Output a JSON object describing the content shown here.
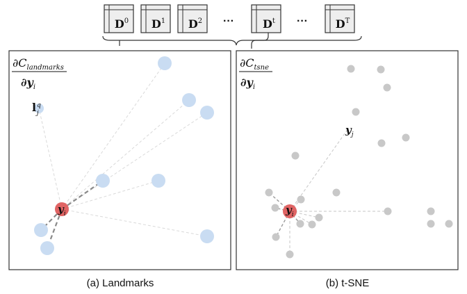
{
  "sequence": {
    "frames": [
      {
        "base": "D",
        "sup": "0"
      },
      {
        "base": "D",
        "sup": "1"
      },
      {
        "base": "D",
        "sup": "2"
      },
      {
        "ellipsis": "···"
      },
      {
        "base": "D",
        "sup": "t"
      },
      {
        "ellipsis": "···"
      },
      {
        "base": "D",
        "sup": "T"
      }
    ]
  },
  "panel_a": {
    "caption": "(a) Landmarks",
    "gradient": {
      "num_base": "∂C",
      "num_sub": "landmarks",
      "den_base": "∂y",
      "den_sub": "i"
    },
    "focus": {
      "base": "y",
      "sub": "i"
    },
    "landmark": {
      "base": "l",
      "sub": "j",
      "sup": "q"
    }
  },
  "panel_b": {
    "caption": "(b) t-SNE",
    "gradient": {
      "num_base": "∂C",
      "num_sub": "tsne",
      "den_base": "∂y",
      "den_sub": "i"
    },
    "focus": {
      "base": "y",
      "sub": "i"
    },
    "neighbor": {
      "base": "y",
      "sub": "j"
    }
  },
  "colors": {
    "landmark_point": "#c9dcf2",
    "tsne_point": "#c8c8c8",
    "focus_point": "#e06464",
    "dashed_line": "#bcbcbc",
    "strong_dash": "#8a8a8a",
    "frame_fill": "#eeeeee",
    "frame_border": "#333333"
  }
}
